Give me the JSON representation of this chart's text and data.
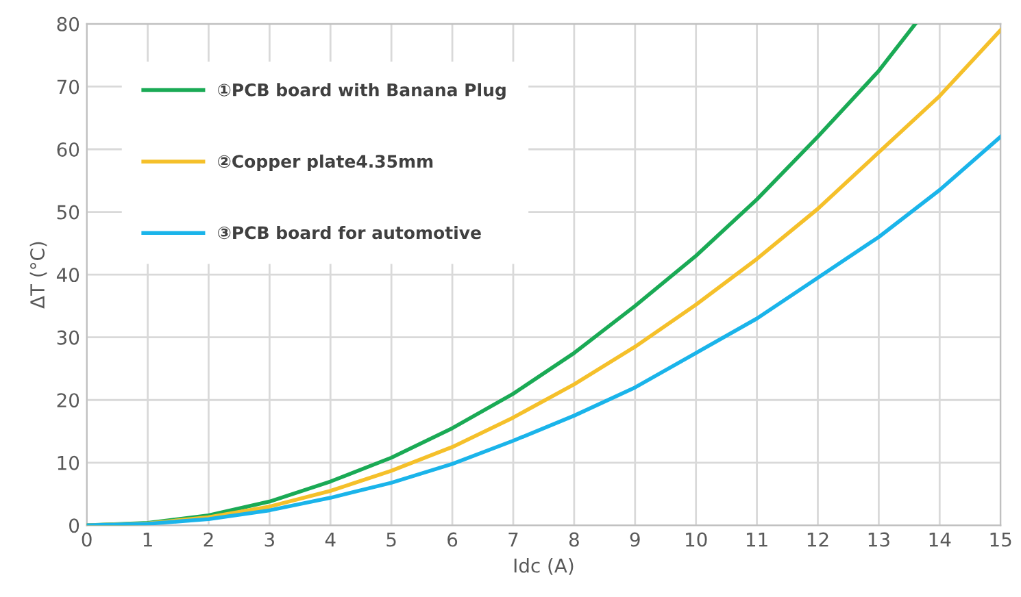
{
  "chart_data": {
    "type": "line",
    "xlabel": "Idc (A)",
    "ylabel": "ΔT (°C)",
    "xlim": [
      0,
      15
    ],
    "ylim": [
      0,
      80
    ],
    "xticks": [
      0,
      1,
      2,
      3,
      4,
      5,
      6,
      7,
      8,
      9,
      10,
      11,
      12,
      13,
      14,
      15
    ],
    "yticks": [
      0,
      10,
      20,
      30,
      40,
      50,
      60,
      70,
      80
    ],
    "grid": true,
    "legend": "top left",
    "marker": "none",
    "line_style": "solid",
    "series": [
      {
        "name": "①PCB board with Banana Plug",
        "color": "#1aaa55",
        "x": [
          0,
          1,
          2,
          3,
          4,
          5,
          6,
          7,
          8,
          9,
          10,
          11,
          12,
          13,
          13.6
        ],
        "values": [
          0,
          0.4,
          1.6,
          3.8,
          7,
          10.8,
          15.5,
          21,
          27.5,
          35,
          43,
          52,
          62,
          72.5,
          80
        ]
      },
      {
        "name": "②Copper plate4.35mm",
        "color": "#f5c02a",
        "x": [
          0,
          1,
          2,
          3,
          4,
          5,
          6,
          7,
          8,
          9,
          10,
          11,
          12,
          13,
          14,
          15
        ],
        "values": [
          0,
          0.3,
          1.3,
          3,
          5.5,
          8.7,
          12.5,
          17.2,
          22.5,
          28.5,
          35.2,
          42.5,
          50.5,
          59.5,
          68.5,
          79
        ]
      },
      {
        "name": "③PCB board for automotive",
        "color": "#1ab4ea",
        "x": [
          0,
          1,
          2,
          3,
          4,
          5,
          6,
          7,
          8,
          9,
          10,
          11,
          12,
          13,
          14,
          15
        ],
        "values": [
          0,
          0.25,
          1,
          2.4,
          4.4,
          6.8,
          9.8,
          13.5,
          17.5,
          22,
          27.5,
          33,
          39.5,
          46,
          53.5,
          62
        ]
      }
    ]
  }
}
